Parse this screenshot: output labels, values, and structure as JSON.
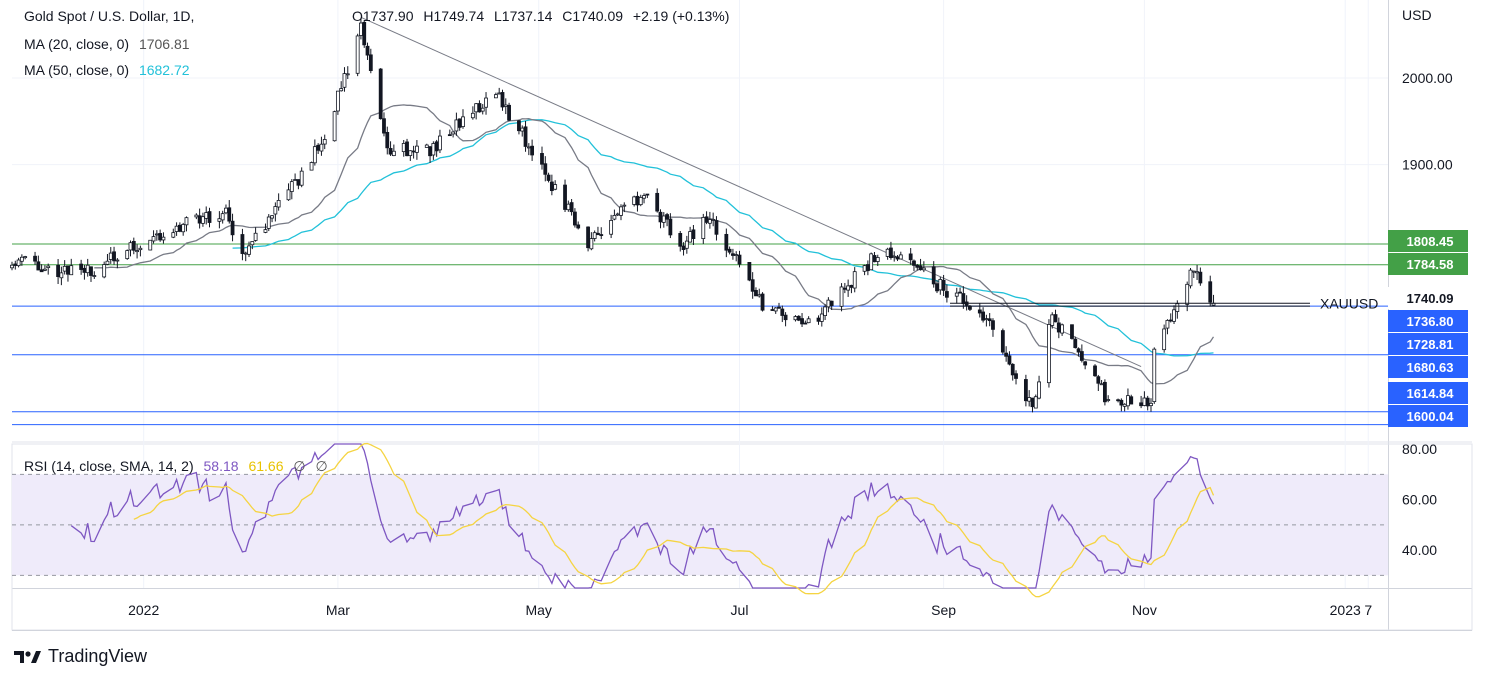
{
  "header": {
    "symbol": "Gold Spot / U.S. Dollar, 1D,",
    "ohlc": {
      "open": "O1737.90",
      "high": "H1749.74",
      "low": "L1737.14",
      "close": "C1740.09",
      "change": "+2.19 (+0.13%)"
    },
    "ma20": {
      "label": "MA (20, close, 0)",
      "value": "1706.81"
    },
    "ma50": {
      "label": "MA (50, close, 0)",
      "value": "1682.72"
    },
    "rsi": {
      "label": "RSI (14, close, SMA, 14, 2)",
      "value": "58.18",
      "sma": "61.66",
      "extra1": "∅",
      "extra2": "∅"
    }
  },
  "axis": {
    "currency": "USD",
    "price_ticks": [
      "2000.00",
      "1900.00"
    ],
    "rsi_ticks": [
      "80.00",
      "60.00",
      "40.00"
    ],
    "time_labels": [
      "2022",
      "Mar",
      "May",
      "Jul",
      "Sep",
      "Nov",
      "2023",
      "7"
    ]
  },
  "price_tags": [
    {
      "label": "1808.45",
      "color": "#43a047"
    },
    {
      "label": "1784.58",
      "color": "#43a047"
    },
    {
      "label": "1740.09",
      "color": "#ffffff"
    },
    {
      "label": "1736.80",
      "color": "#2962ff"
    },
    {
      "label": "1728.81",
      "color": "#2962ff"
    },
    {
      "label": "1680.63",
      "color": "#2962ff"
    },
    {
      "label": "1614.84",
      "color": "#2962ff"
    },
    {
      "label": "1600.04",
      "color": "#2962ff"
    }
  ],
  "symbol_tag": "XAUUSD",
  "brand": "TradingView",
  "colors": {
    "up": "#131722",
    "down": "#131722",
    "ma20": "#787b86",
    "ma50": "#22c1d9",
    "rsi": "#7e57c2",
    "rsi_sma": "#f5d442",
    "green_level": "#43a047",
    "blue_level": "#2962ff",
    "trendline": "#787b86"
  },
  "chart_data": {
    "type": "candlestick",
    "title": "Gold Spot / U.S. Dollar, 1D",
    "ylabel": "USD",
    "ylim": [
      1580,
      2090
    ],
    "x_range": [
      "2021-11-22",
      "2023-01-14"
    ],
    "key_levels": [
      1808.45,
      1784.58,
      1736.8,
      1680.63,
      1614.84,
      1600.04
    ],
    "trendline": {
      "start": {
        "date": "2022-03-08",
        "price": 2070
      },
      "end": {
        "date": "2022-10-31",
        "price": 1667
      }
    },
    "anchors": [
      [
        "2021-11-22",
        1793
      ],
      [
        "2021-12-01",
        1782
      ],
      [
        "2021-12-15",
        1775
      ],
      [
        "2022-01-04",
        1816
      ],
      [
        "2022-01-25",
        1848
      ],
      [
        "2022-02-01",
        1798
      ],
      [
        "2022-02-14",
        1868
      ],
      [
        "2022-02-24",
        1925
      ],
      [
        "2022-03-08",
        2055
      ],
      [
        "2022-03-16",
        1920
      ],
      [
        "2022-03-29",
        1918
      ],
      [
        "2022-04-18",
        1985
      ],
      [
        "2022-05-16",
        1810
      ],
      [
        "2022-06-01",
        1865
      ],
      [
        "2022-06-14",
        1810
      ],
      [
        "2022-06-22",
        1838
      ],
      [
        "2022-07-08",
        1740
      ],
      [
        "2022-07-21",
        1712
      ],
      [
        "2022-08-10",
        1790
      ],
      [
        "2022-08-16",
        1800
      ],
      [
        "2022-09-13",
        1725
      ],
      [
        "2022-09-28",
        1622
      ],
      [
        "2022-10-04",
        1725
      ],
      [
        "2022-10-21",
        1628
      ],
      [
        "2022-11-03",
        1630
      ],
      [
        "2022-11-04",
        1680
      ],
      [
        "2022-11-15",
        1780
      ],
      [
        "2022-11-22",
        1740
      ]
    ],
    "ma20_last": 1706.81,
    "ma50_last": 1682.72,
    "rsi": {
      "ylim": [
        25,
        82
      ],
      "bands": [
        30,
        50,
        70
      ],
      "last": 58.18,
      "sma_last": 61.66
    }
  }
}
